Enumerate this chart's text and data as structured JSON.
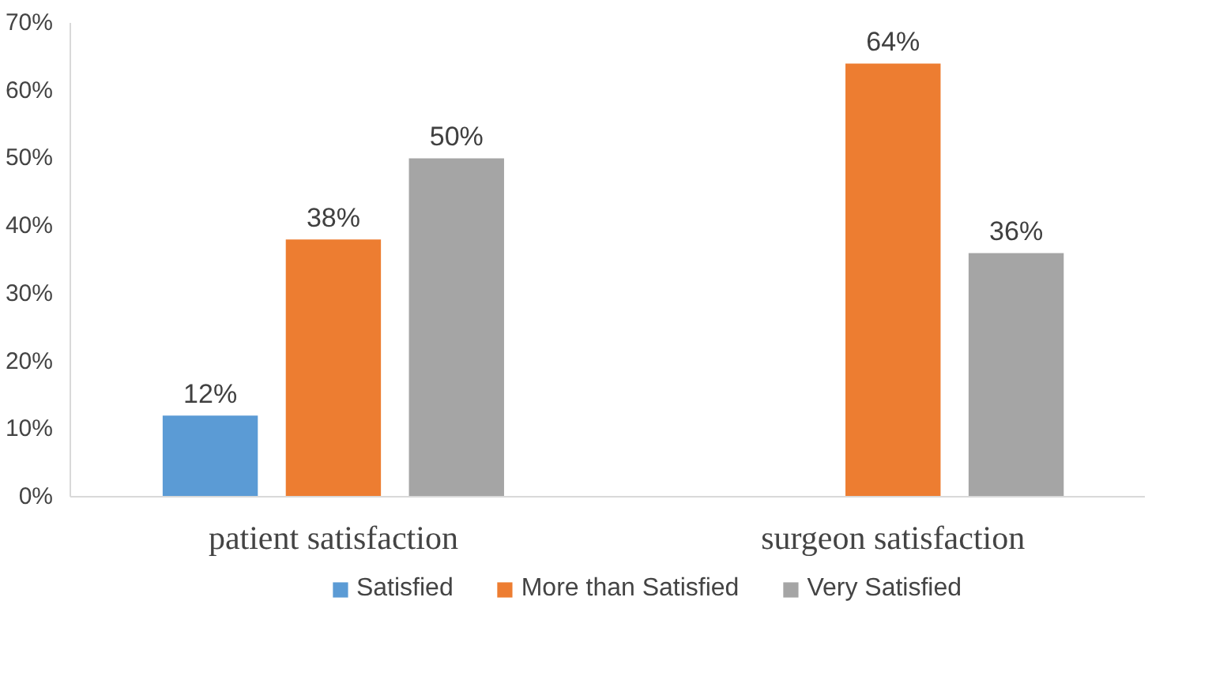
{
  "chart_data": {
    "type": "bar",
    "categories": [
      "patient satisfaction",
      "surgeon satisfaction"
    ],
    "series": [
      {
        "name": "Satisfied",
        "color": "#5b9bd5",
        "values": [
          12,
          null
        ],
        "value_labels": [
          "12%",
          null
        ]
      },
      {
        "name": "More than Satisfied",
        "color": "#ed7d31",
        "values": [
          38,
          64
        ],
        "value_labels": [
          "38%",
          "64%"
        ]
      },
      {
        "name": "Very Satisfied",
        "color": "#a5a5a5",
        "values": [
          50,
          36
        ],
        "value_labels": [
          "50%",
          "36%"
        ]
      }
    ],
    "ylim": [
      0,
      70
    ],
    "yticks": [
      {
        "value": 0,
        "label": "0%"
      },
      {
        "value": 10,
        "label": "10%"
      },
      {
        "value": 20,
        "label": "20%"
      },
      {
        "value": 30,
        "label": "30%"
      },
      {
        "value": 40,
        "label": "40%"
      },
      {
        "value": 50,
        "label": "50%"
      },
      {
        "value": 60,
        "label": "60%"
      },
      {
        "value": 70,
        "label": "70%"
      }
    ],
    "grid": false,
    "legend": "bottom"
  }
}
